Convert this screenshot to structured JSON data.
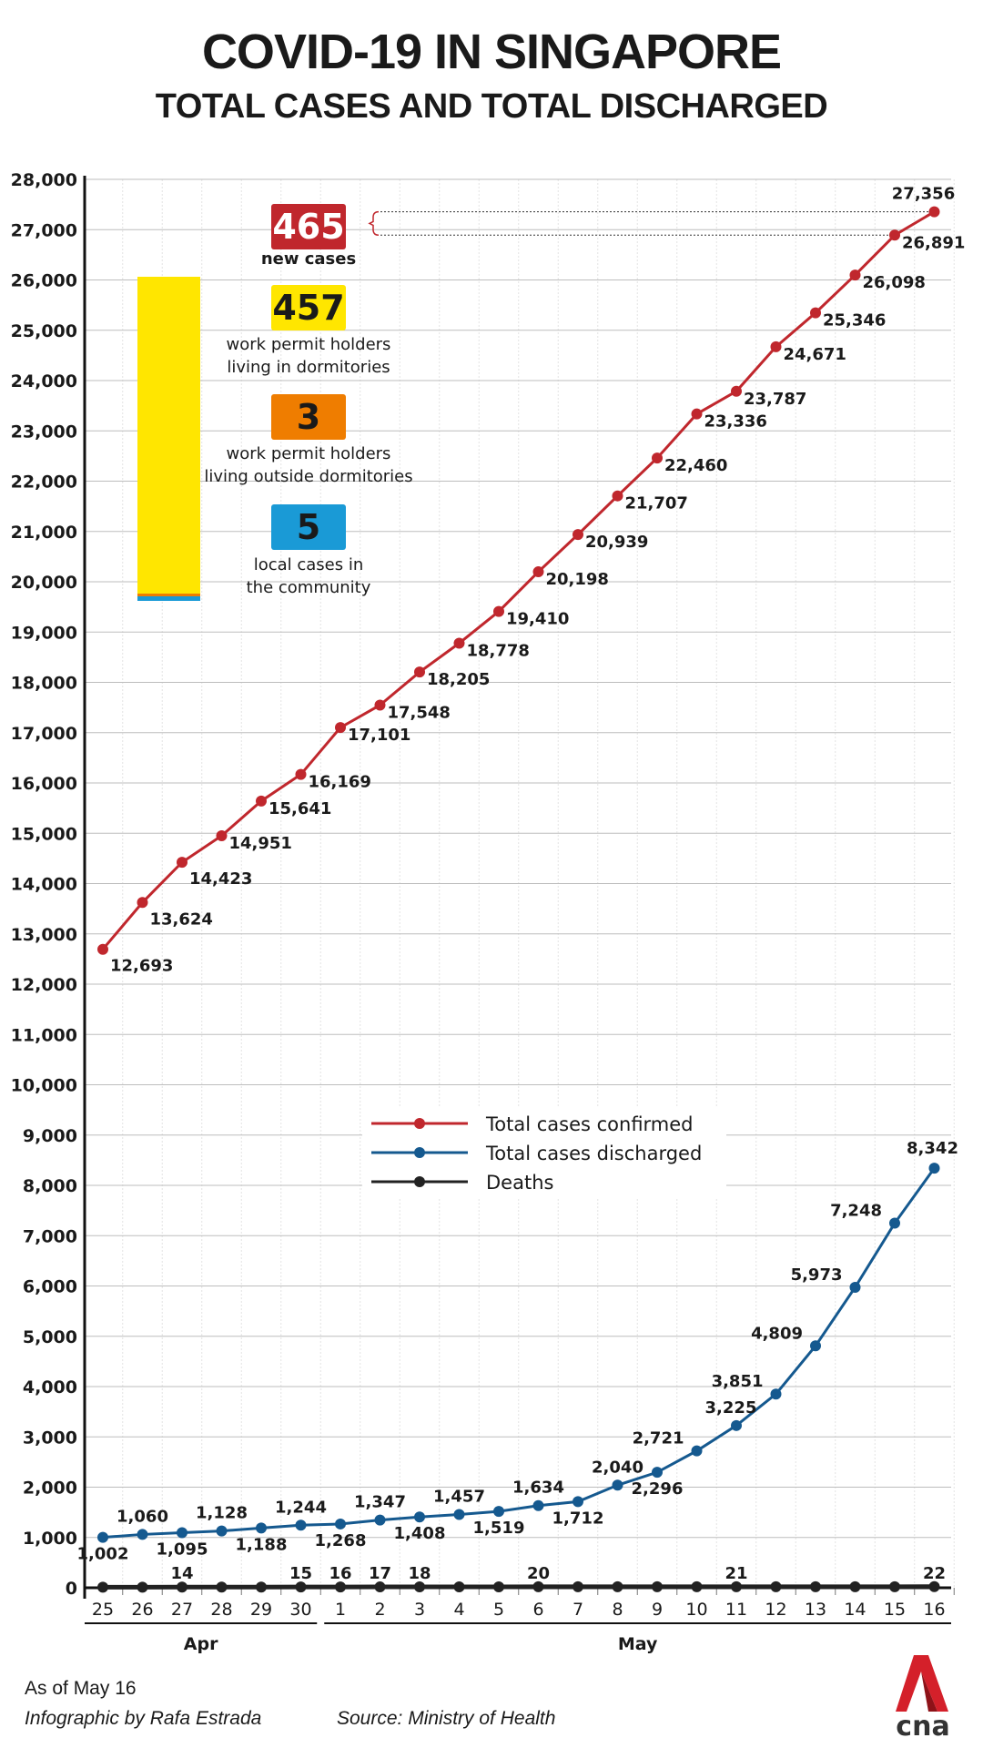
{
  "header": {
    "title": "COVID-19 IN SINGAPORE",
    "subtitle": "TOTAL CASES AND TOTAL DISCHARGED"
  },
  "inset": {
    "total": {
      "value": "465",
      "label": "new cases",
      "color": "#c0272d"
    },
    "items": [
      {
        "value": "457",
        "label1": "work permit holders",
        "label2": "living in dormitories",
        "color": "#ffe600"
      },
      {
        "value": "3",
        "label1": "work permit holders",
        "label2": "living outside dormitories",
        "color": "#ef7d00"
      },
      {
        "value": "5",
        "label1": "local cases in",
        "label2": "the community",
        "color": "#1a9ad6"
      }
    ]
  },
  "chart_data": {
    "type": "line",
    "categories": [
      "25",
      "26",
      "27",
      "28",
      "29",
      "30",
      "1",
      "2",
      "3",
      "4",
      "5",
      "6",
      "7",
      "8",
      "9",
      "10",
      "11",
      "12",
      "13",
      "14",
      "15",
      "16"
    ],
    "month_groups": [
      {
        "label": "Apr",
        "from": "25",
        "to": "30"
      },
      {
        "label": "May",
        "from": "1",
        "to": "16"
      }
    ],
    "ylim": [
      0,
      28000
    ],
    "yticks": [
      "0",
      "1,000",
      "2,000",
      "3,000",
      "4,000",
      "5,000",
      "6,000",
      "7,000",
      "8,000",
      "9,000",
      "10,000",
      "11,000",
      "12,000",
      "13,000",
      "14,000",
      "15,000",
      "16,000",
      "17,000",
      "18,000",
      "19,000",
      "20,000",
      "21,000",
      "22,000",
      "23,000",
      "24,000",
      "25,000",
      "26,000",
      "27,000",
      "28,000"
    ],
    "grid": true,
    "legend_position": "center",
    "series": [
      {
        "name": "Total cases confirmed",
        "color": "#c0272d",
        "values": [
          12693,
          13624,
          14423,
          14951,
          15641,
          16169,
          17101,
          17548,
          18205,
          18778,
          19410,
          20198,
          20939,
          21707,
          22460,
          23336,
          23787,
          24671,
          25346,
          26098,
          26891,
          27356
        ],
        "labels": [
          "12,693",
          "13,624",
          "14,423",
          "14,951",
          "15,641",
          "16,169",
          "17,101",
          "17,548",
          "18,205",
          "18,778",
          "19,410",
          "20,198",
          "20,939",
          "21,707",
          "22,460",
          "23,336",
          "23,787",
          "24,671",
          "25,346",
          "26,098",
          "26,891",
          "27,356"
        ]
      },
      {
        "name": "Total cases discharged",
        "color": "#15598f",
        "values": [
          1002,
          1060,
          1095,
          1128,
          1188,
          1244,
          1268,
          1347,
          1408,
          1457,
          1519,
          1634,
          1712,
          2040,
          2296,
          2721,
          3225,
          3851,
          4809,
          5973,
          7248,
          8342
        ],
        "labels": [
          "1,002",
          "1,060",
          "1,095",
          "1,128",
          "1,188",
          "1,244",
          "1,268",
          "1,347",
          "1,408",
          "1,457",
          "1,519",
          "1,634",
          "1,712",
          "2,040",
          "2,296",
          "2,721",
          "3,225",
          "3,851",
          "4,809",
          "5,973",
          "7,248",
          "8,342"
        ]
      },
      {
        "name": "Deaths",
        "color": "#222222",
        "values": [
          12,
          12,
          14,
          14,
          14,
          15,
          16,
          17,
          18,
          18,
          18,
          20,
          20,
          20,
          20,
          20,
          21,
          21,
          21,
          21,
          21,
          22
        ],
        "labels": [
          null,
          null,
          "14",
          null,
          null,
          "15",
          "16",
          "17",
          "18",
          null,
          null,
          "20",
          null,
          null,
          null,
          null,
          "21",
          null,
          null,
          null,
          null,
          "22"
        ]
      }
    ]
  },
  "footer": {
    "as_of": "As of May 16",
    "credit": "Infographic by Rafa Estrada",
    "source": "Source: Ministry of Health",
    "logo_text": "cna"
  }
}
